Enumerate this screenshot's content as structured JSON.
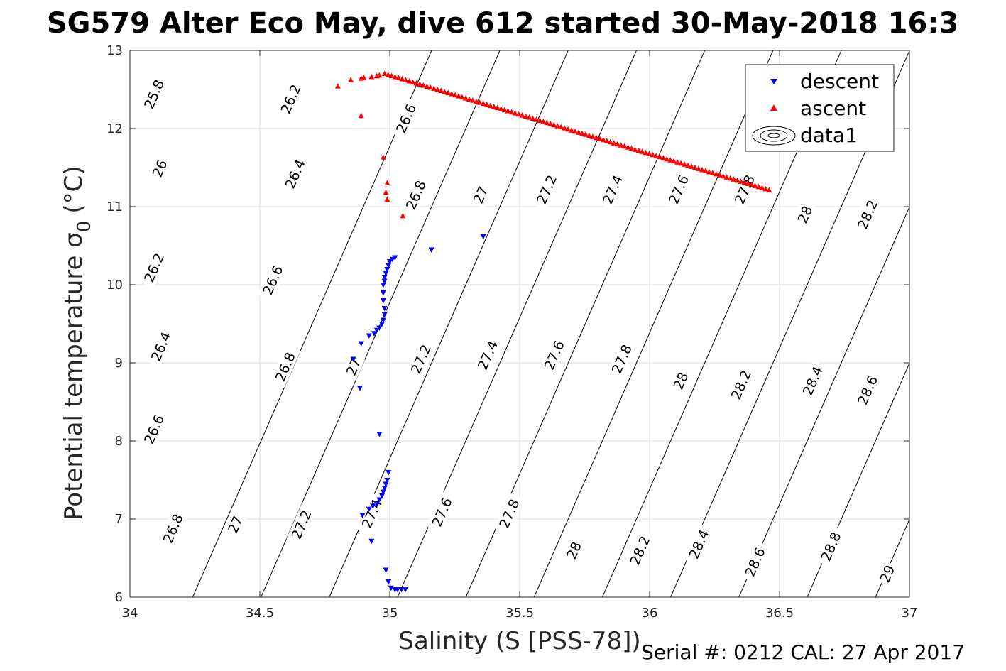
{
  "chart_data": {
    "type": "scatter",
    "title": "SG579 Alter Eco May, dive 612 started 30-May-2018 16:3",
    "xlabel": "Salinity (S [PSS-78])",
    "ylabel": "Potential temperature σ",
    "ylabel_subscript": "0",
    "ylabel_unit": "(°C)",
    "xlim": [
      34,
      37
    ],
    "ylim": [
      6,
      13
    ],
    "x_ticks": [
      "34",
      "34.5",
      "35",
      "35.5",
      "36",
      "36.5",
      "37"
    ],
    "y_ticks": [
      "6",
      "7",
      "8",
      "9",
      "10",
      "11",
      "12",
      "13"
    ],
    "grid": true,
    "legend": {
      "placement": "top-right",
      "entries": [
        "descent",
        "ascent",
        "data1"
      ]
    },
    "contours": [
      {
        "sigma": "25.8",
        "S0": 33.4533,
        "label_x": 34.092,
        "label_y": 12.44
      },
      {
        "sigma": "26",
        "S0": 33.7161,
        "label_x": 34.114,
        "label_y": 11.49
      },
      {
        "sigma": "26.2",
        "S0": 33.9788,
        "label_x": 34.092,
        "label_y": 10.22
      },
      {
        "sigma": "26.2",
        "S0": 33.9788,
        "label_x": 34.618,
        "label_y": 12.38
      },
      {
        "sigma": "26.4",
        "S0": 34.2416,
        "label_x": 34.119,
        "label_y": 9.21
      },
      {
        "sigma": "26.4",
        "S0": 34.2416,
        "label_x": 34.635,
        "label_y": 11.42
      },
      {
        "sigma": "26.6",
        "S0": 34.5044,
        "label_x": 34.092,
        "label_y": 8.15
      },
      {
        "sigma": "26.6",
        "S0": 34.5044,
        "label_x": 34.549,
        "label_y": 10.06
      },
      {
        "sigma": "26.6",
        "S0": 34.5044,
        "label_x": 35.062,
        "label_y": 12.13
      },
      {
        "sigma": "26.8",
        "S0": 34.7671,
        "label_x": 34.165,
        "label_y": 6.88
      },
      {
        "sigma": "26.8",
        "S0": 34.7671,
        "label_x": 34.597,
        "label_y": 8.95
      },
      {
        "sigma": "26.8",
        "S0": 34.7671,
        "label_x": 35.1,
        "label_y": 11.15
      },
      {
        "sigma": "27",
        "S0": 35.0299,
        "label_x": 34.405,
        "label_y": 6.93
      },
      {
        "sigma": "27",
        "S0": 35.0299,
        "label_x": 34.86,
        "label_y": 8.95
      },
      {
        "sigma": "27",
        "S0": 35.0299,
        "label_x": 35.349,
        "label_y": 11.15
      },
      {
        "sigma": "27.2",
        "S0": 35.2927,
        "label_x": 34.659,
        "label_y": 6.93
      },
      {
        "sigma": "27.2",
        "S0": 35.2927,
        "label_x": 35.119,
        "label_y": 9.05
      },
      {
        "sigma": "27.2",
        "S0": 35.2927,
        "label_x": 35.603,
        "label_y": 11.22
      },
      {
        "sigma": "27.4",
        "S0": 35.5554,
        "label_x": 34.93,
        "label_y": 7.07
      },
      {
        "sigma": "27.4",
        "S0": 35.5554,
        "label_x": 35.376,
        "label_y": 9.1
      },
      {
        "sigma": "27.4",
        "S0": 35.5554,
        "label_x": 35.857,
        "label_y": 11.22
      },
      {
        "sigma": "27.6",
        "S0": 35.8182,
        "label_x": 35.2,
        "label_y": 7.09
      },
      {
        "sigma": "27.6",
        "S0": 35.8182,
        "label_x": 35.632,
        "label_y": 9.1
      },
      {
        "sigma": "27.6",
        "S0": 35.8182,
        "label_x": 36.111,
        "label_y": 11.22
      },
      {
        "sigma": "27.8",
        "S0": 36.081,
        "label_x": 35.459,
        "label_y": 7.07
      },
      {
        "sigma": "27.8",
        "S0": 36.081,
        "label_x": 35.892,
        "label_y": 9.05
      },
      {
        "sigma": "27.8",
        "S0": 36.081,
        "label_x": 36.365,
        "label_y": 11.22
      },
      {
        "sigma": "28",
        "S0": 36.3437,
        "label_x": 35.708,
        "label_y": 6.6
      },
      {
        "sigma": "28",
        "S0": 36.3437,
        "label_x": 36.119,
        "label_y": 8.77
      },
      {
        "sigma": "28",
        "S0": 36.3437,
        "label_x": 36.597,
        "label_y": 10.9
      },
      {
        "sigma": "28.2",
        "S0": 36.6065,
        "label_x": 35.962,
        "label_y": 6.6
      },
      {
        "sigma": "28.2",
        "S0": 36.6065,
        "label_x": 36.351,
        "label_y": 8.72
      },
      {
        "sigma": "28.2",
        "S0": 36.6065,
        "label_x": 36.838,
        "label_y": 10.9
      },
      {
        "sigma": "28.4",
        "S0": 36.8693,
        "label_x": 36.189,
        "label_y": 6.68
      },
      {
        "sigma": "28.4",
        "S0": 36.8693,
        "label_x": 36.627,
        "label_y": 8.77
      },
      {
        "sigma": "28.6",
        "S0": 37.132,
        "label_x": 36.405,
        "label_y": 6.45
      },
      {
        "sigma": "28.6",
        "S0": 37.132,
        "label_x": 36.838,
        "label_y": 8.65
      },
      {
        "sigma": "28.8",
        "S0": 37.3948,
        "label_x": 36.697,
        "label_y": 6.65
      },
      {
        "sigma": "29",
        "S0": 37.6576,
        "label_x": 36.914,
        "label_y": 6.3
      }
    ],
    "contour_slope": 0.13137,
    "series": [
      {
        "name": "descent",
        "marker": "triangle-down",
        "color": "#0000ff",
        "points": [
          [
            35.02,
            10.35
          ],
          [
            35.01,
            10.33
          ],
          [
            35.0,
            10.3
          ],
          [
            34.995,
            10.25
          ],
          [
            34.99,
            10.2
          ],
          [
            34.985,
            10.15
          ],
          [
            34.98,
            10.1
          ],
          [
            34.98,
            10.05
          ],
          [
            34.975,
            10.0
          ],
          [
            34.975,
            9.9
          ],
          [
            34.975,
            9.8
          ],
          [
            34.98,
            9.7
          ],
          [
            34.98,
            9.62
          ],
          [
            34.975,
            9.55
          ],
          [
            34.97,
            9.5
          ],
          [
            34.96,
            9.45
          ],
          [
            34.95,
            9.42
          ],
          [
            34.94,
            9.38
          ],
          [
            34.92,
            9.35
          ],
          [
            34.89,
            9.25
          ],
          [
            34.86,
            9.05
          ],
          [
            34.885,
            8.68
          ],
          [
            34.96,
            8.09
          ],
          [
            35.16,
            10.45
          ],
          [
            35.36,
            10.62
          ],
          [
            34.995,
            7.6
          ],
          [
            34.99,
            7.5
          ],
          [
            34.985,
            7.45
          ],
          [
            34.98,
            7.4
          ],
          [
            34.975,
            7.35
          ],
          [
            34.97,
            7.3
          ],
          [
            34.96,
            7.25
          ],
          [
            34.95,
            7.2
          ],
          [
            34.935,
            7.17
          ],
          [
            34.92,
            7.13
          ],
          [
            34.895,
            7.05
          ],
          [
            34.93,
            6.72
          ],
          [
            34.985,
            6.35
          ],
          [
            34.995,
            6.2
          ],
          [
            35.005,
            6.12
          ],
          [
            35.02,
            6.1
          ],
          [
            35.03,
            6.1
          ],
          [
            35.045,
            6.1
          ],
          [
            35.06,
            6.1
          ]
        ]
      },
      {
        "name": "ascent",
        "marker": "triangle-up",
        "color": "#ff0000",
        "line_start": [
          34.98,
          12.7
        ],
        "line_end": [
          36.46,
          11.21
        ],
        "line_count": 110,
        "points": [
          [
            34.8,
            12.54
          ],
          [
            34.85,
            12.62
          ],
          [
            34.89,
            12.64
          ],
          [
            34.89,
            12.16
          ],
          [
            34.9,
            12.65
          ],
          [
            34.93,
            12.66
          ],
          [
            34.95,
            12.67
          ],
          [
            34.96,
            12.68
          ],
          [
            34.975,
            11.63
          ],
          [
            34.99,
            11.3
          ],
          [
            34.985,
            11.18
          ],
          [
            34.99,
            11.09
          ],
          [
            35.05,
            10.88
          ]
        ]
      }
    ]
  },
  "footer": {
    "text": "Serial #: 0212  CAL: 27 Apr 2017"
  }
}
